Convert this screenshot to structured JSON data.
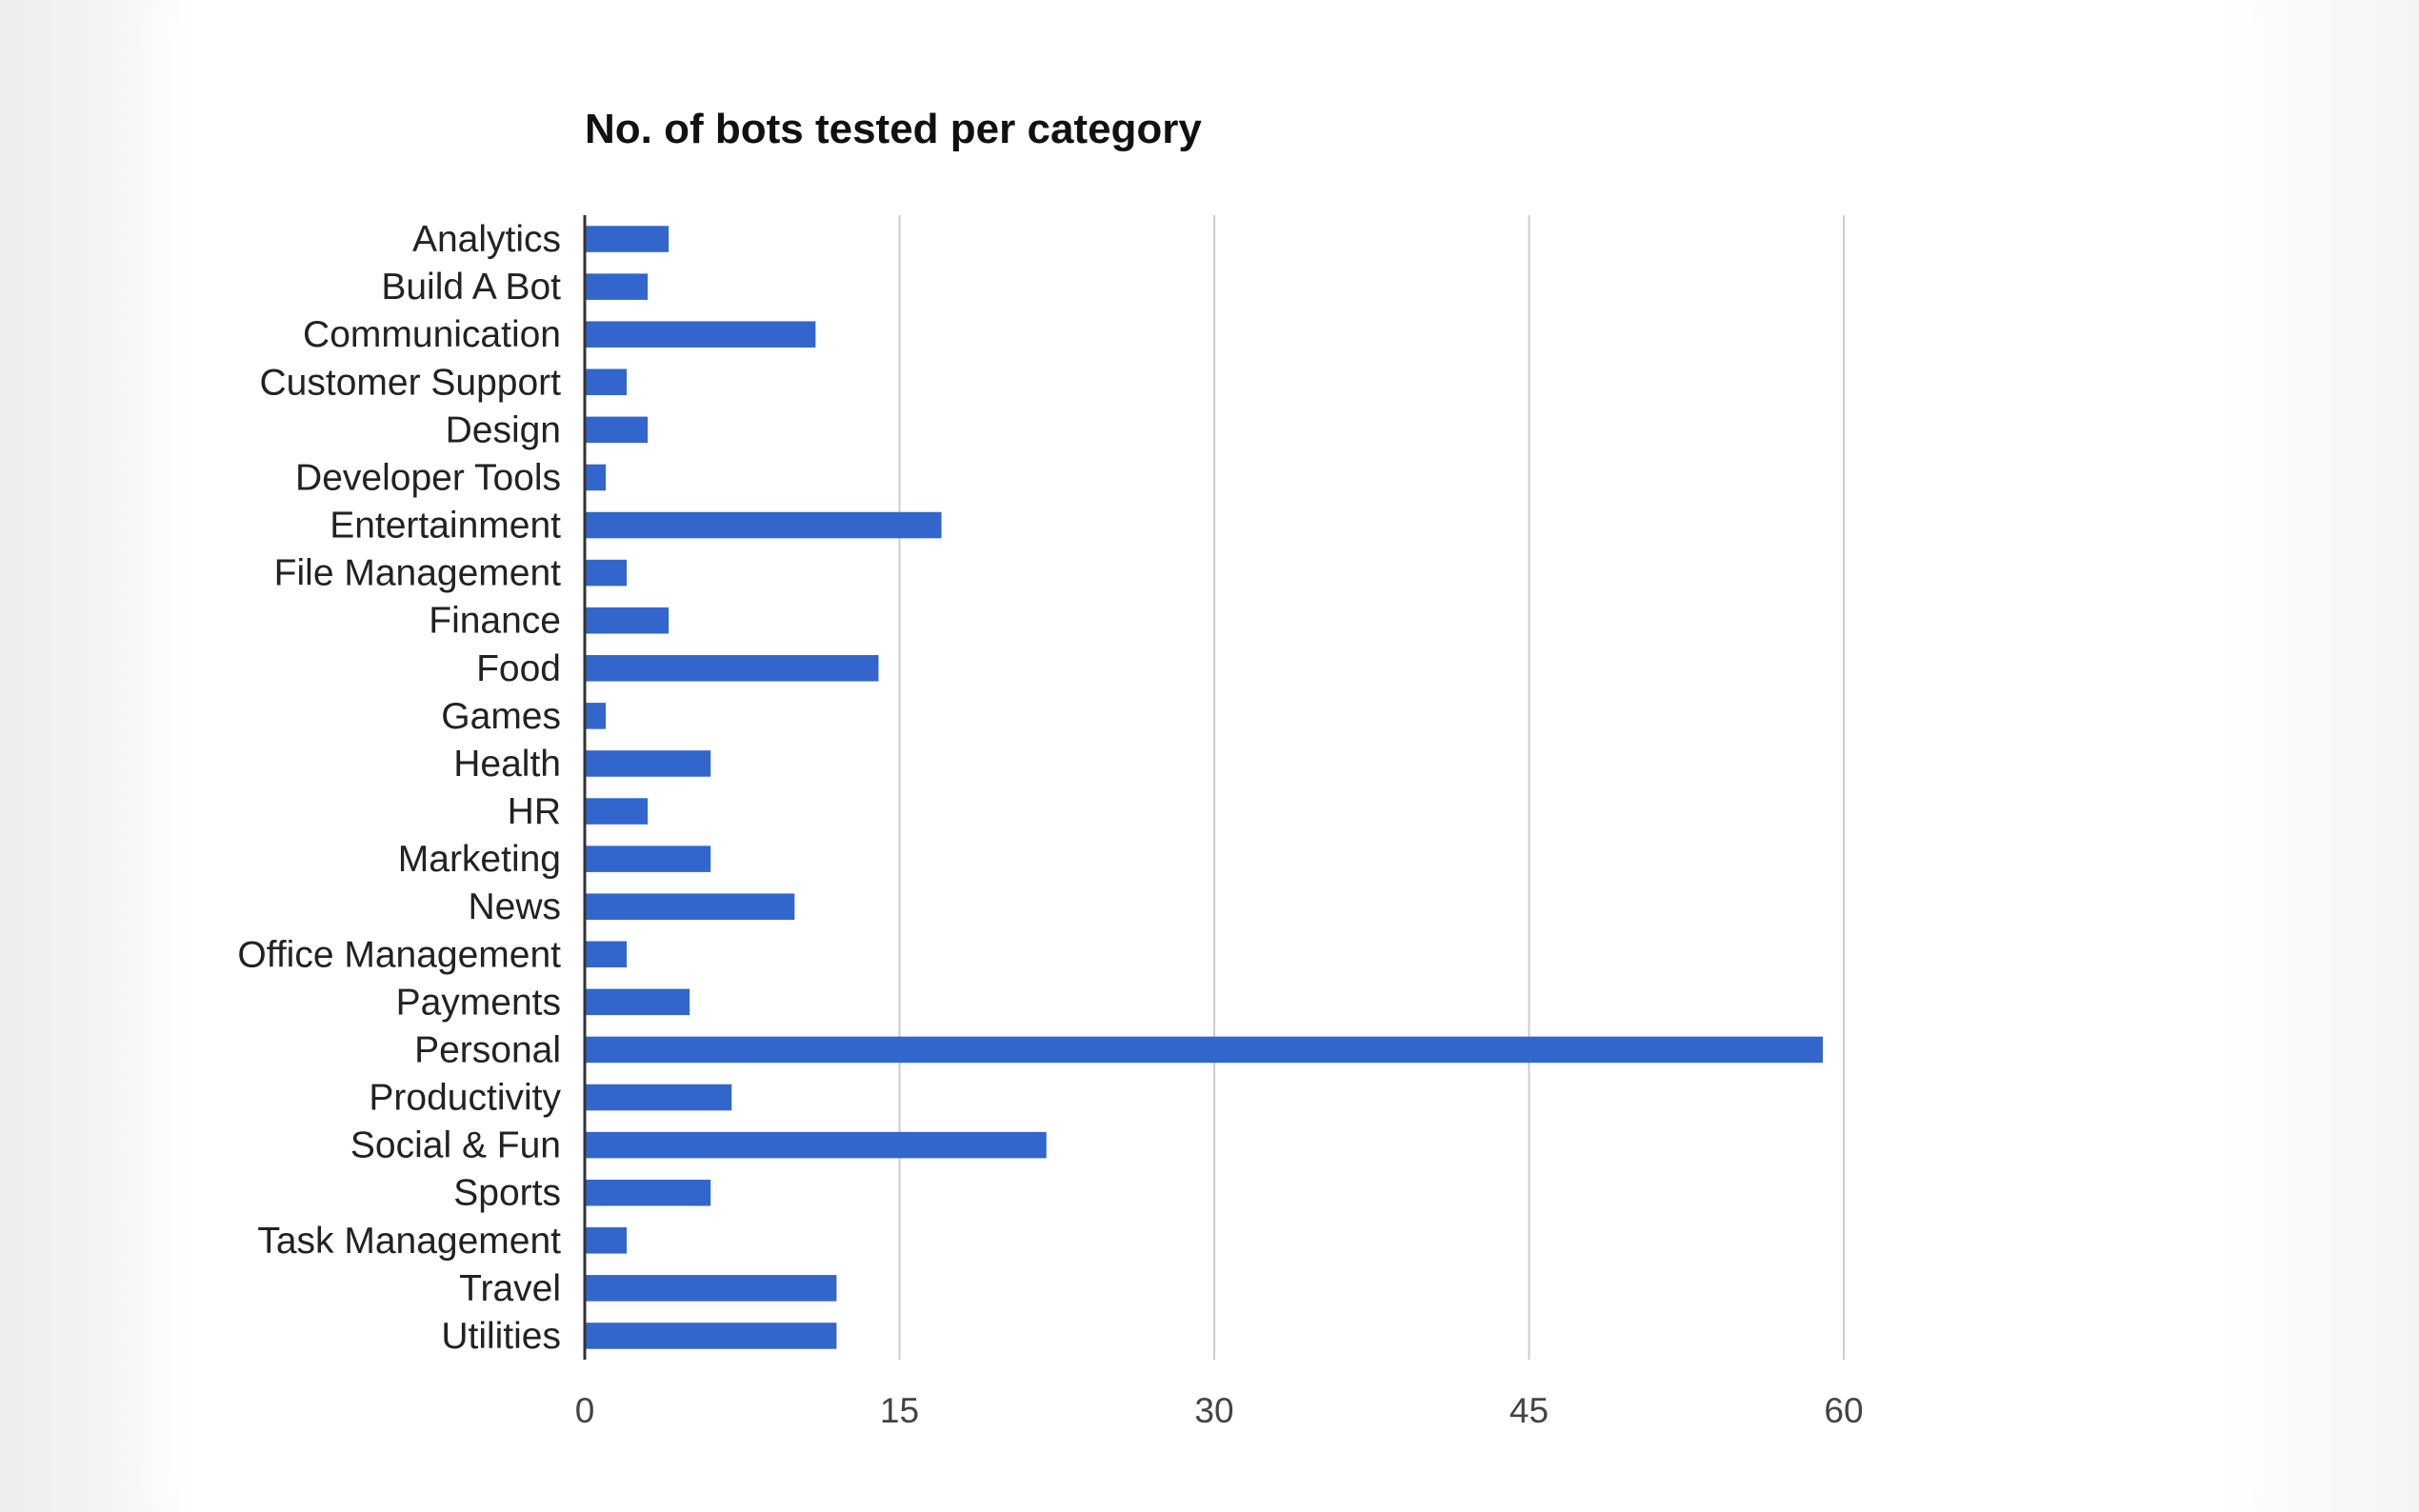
{
  "chart_data": {
    "type": "bar",
    "orientation": "horizontal",
    "title": "No. of bots tested per category",
    "xlabel": "",
    "ylabel": "",
    "categories": [
      "Analytics",
      "Build A Bot",
      "Communication",
      "Customer Support",
      "Design",
      "Developer Tools",
      "Entertainment",
      "File Management",
      "Finance",
      "Food",
      "Games",
      "Health",
      "HR",
      "Marketing",
      "News",
      "Office Management",
      "Payments",
      "Personal",
      "Productivity",
      "Social & Fun",
      "Sports",
      "Task Management",
      "Travel",
      "Utilities"
    ],
    "values": [
      4,
      3,
      11,
      2,
      3,
      1,
      17,
      2,
      4,
      14,
      1,
      6,
      3,
      6,
      10,
      2,
      5,
      59,
      7,
      22,
      6,
      2,
      12,
      12
    ],
    "xlim": [
      0,
      60
    ],
    "xticks": [
      "0",
      "15",
      "30",
      "45",
      "60"
    ],
    "grid": true,
    "legend": "none",
    "bar_color": "#3366cc",
    "grid_color": "#cccccc",
    "axis_color": "#333333"
  }
}
